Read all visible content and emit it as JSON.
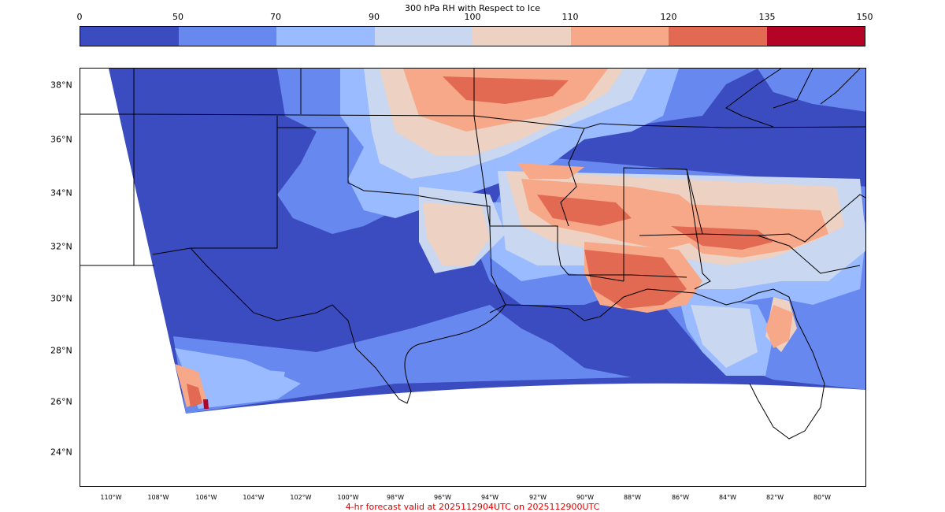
{
  "title": "300 hPa RH with Respect to Ice",
  "colorbar": {
    "ticks": [
      "0",
      "50",
      "70",
      "90",
      "100",
      "110",
      "120",
      "135",
      "150"
    ],
    "colors": [
      "#3b4cc0",
      "#6788ee",
      "#9abbff",
      "#c9d7f0",
      "#edd1c2",
      "#f7a889",
      "#e26952",
      "#b40426"
    ]
  },
  "map": {
    "lat_labels": [
      "38°N",
      "36°N",
      "34°N",
      "32°N",
      "30°N",
      "28°N",
      "26°N",
      "24°N"
    ],
    "lon_labels": [
      "110°W",
      "108°W",
      "106°W",
      "104°W",
      "102°W",
      "100°W",
      "98°W",
      "96°W",
      "94°W",
      "92°W",
      "90°W",
      "88°W",
      "86°W",
      "84°W",
      "82°W",
      "80°W"
    ],
    "colors": {
      "low": "#3b4cc0",
      "mid": "#6788ee",
      "light": "#9abbff",
      "pale": "#c9d7f0",
      "peach": "#edd1c2",
      "salmon": "#f7a889",
      "red": "#e26952",
      "dark": "#b40426"
    }
  },
  "footer": "4-hr forecast valid at 2025112904UTC on 2025112900UTC"
}
